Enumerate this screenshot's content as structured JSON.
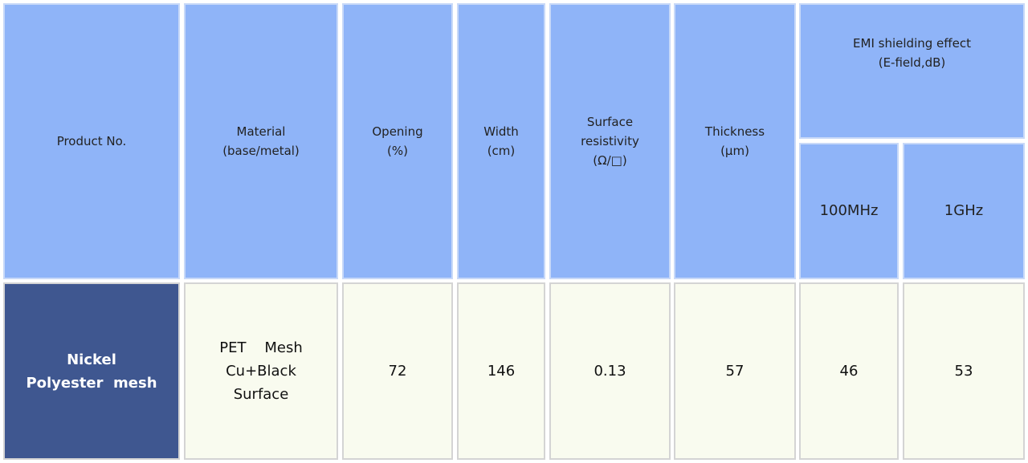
{
  "header": {
    "product": "Product No.",
    "material": [
      "Material",
      "(base/metal)"
    ],
    "opening": [
      "Opening",
      "(%)"
    ],
    "width": [
      "Width",
      "(cm)"
    ],
    "resistivity": [
      "Surface",
      "resistivity",
      "(Ω/□)"
    ],
    "thickness": [
      "Thickness",
      "(μm)"
    ],
    "emi": [
      "EMI shielding effect",
      "(E-field,dB)"
    ],
    "emi_sub": [
      "100MHz",
      "1GHz"
    ]
  },
  "row": {
    "product": [
      "Nickel",
      "Polyester  mesh"
    ],
    "material": [
      "PET    Mesh",
      "Cu+Black",
      "Surface"
    ],
    "opening": 72,
    "width": 146,
    "resistivity": 0.13,
    "thickness": 57,
    "emi_100mhz": 46,
    "emi_1ghz": 53
  }
}
